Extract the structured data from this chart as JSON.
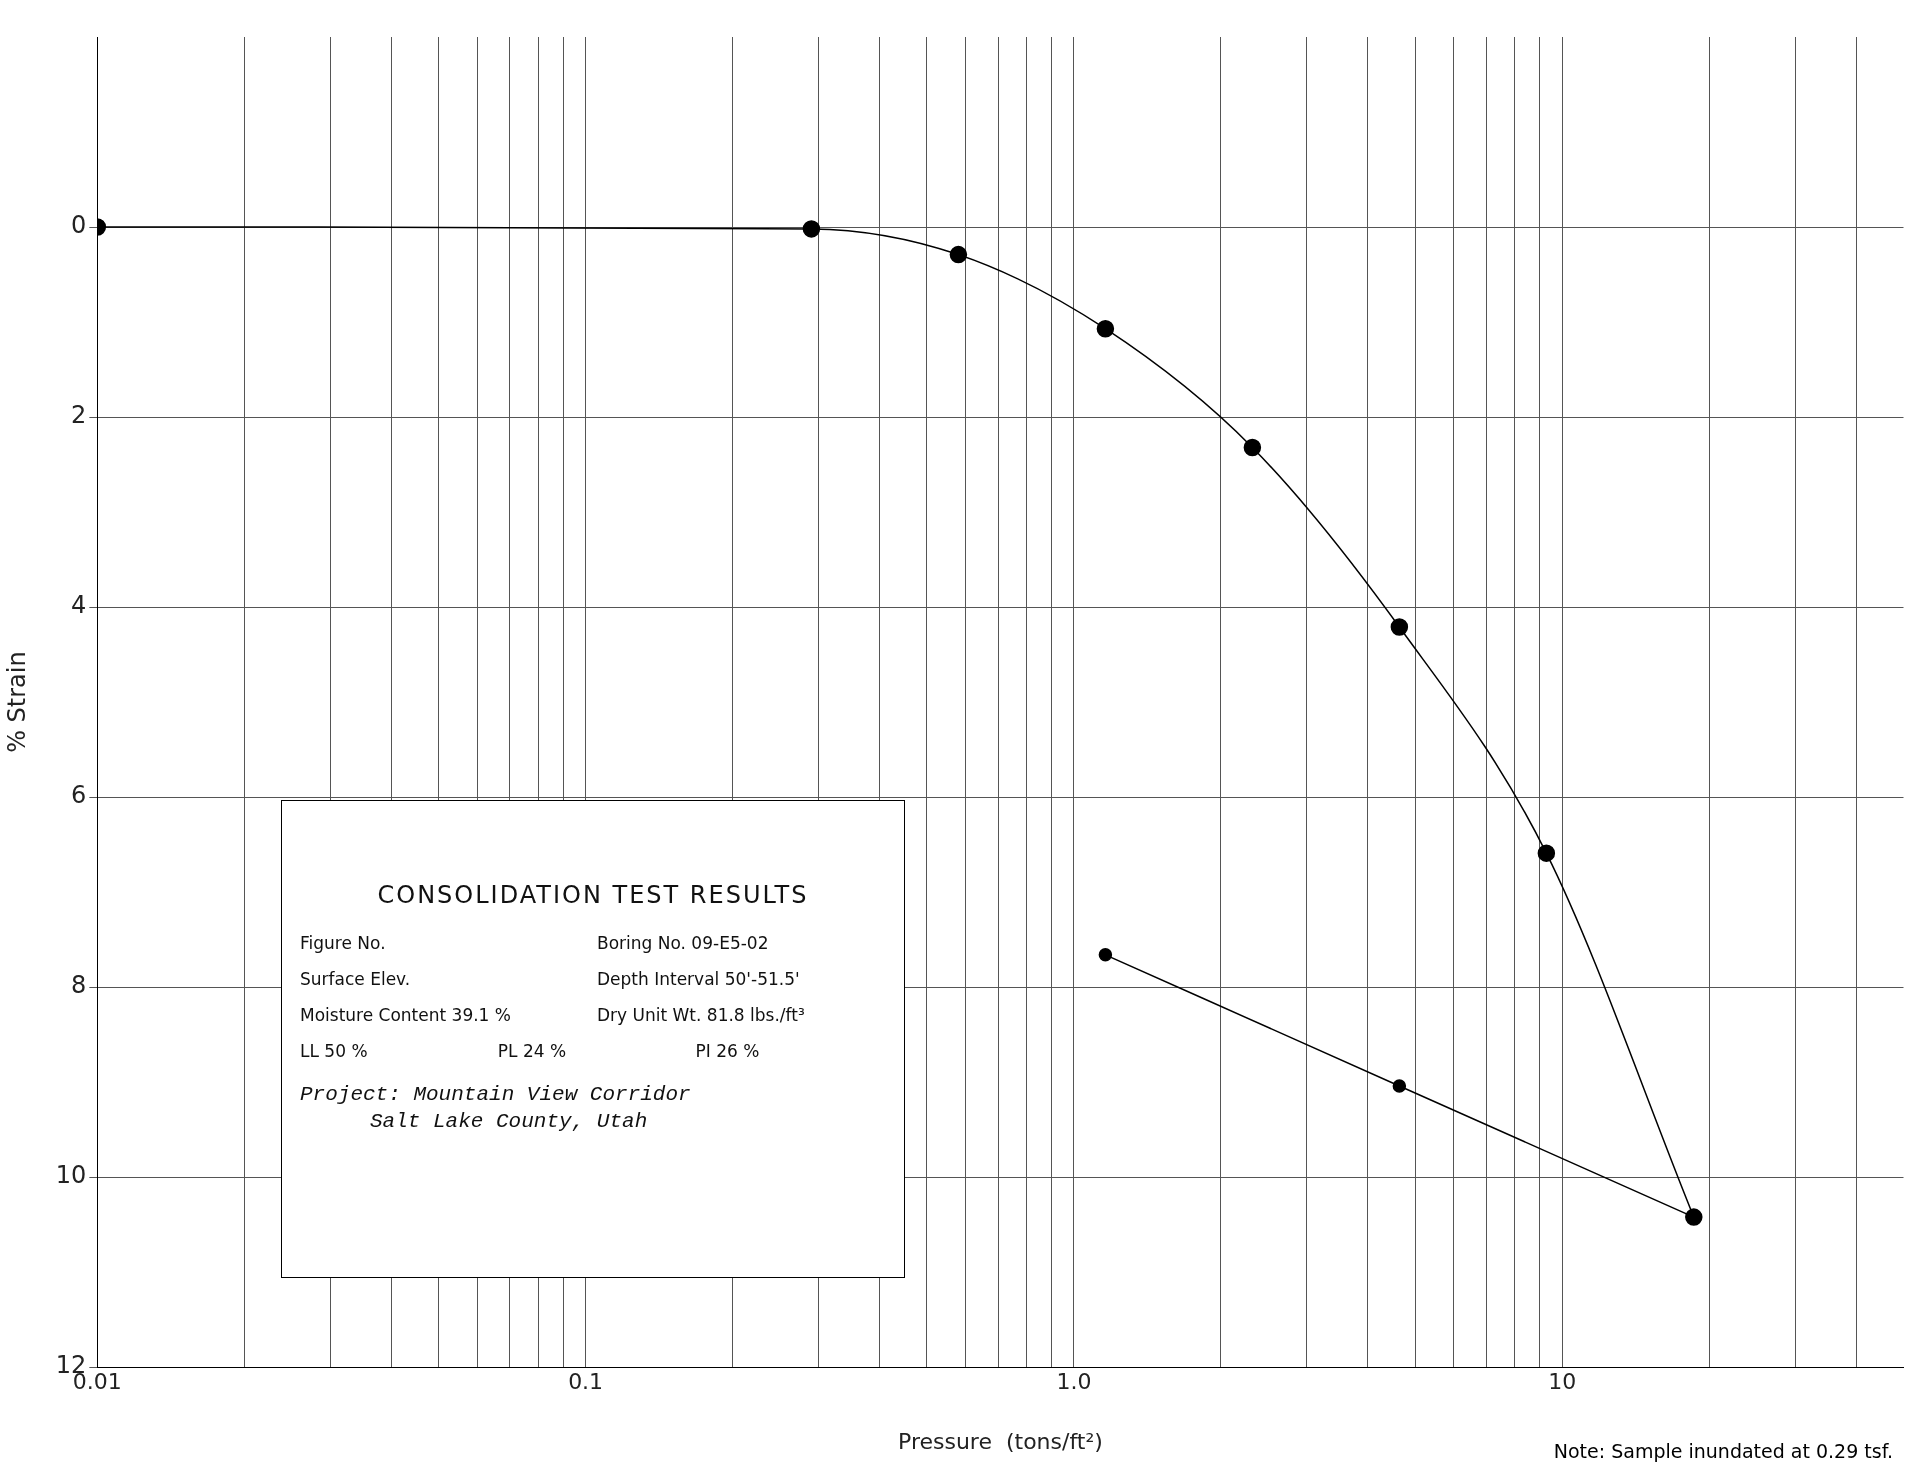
{
  "chart_data": {
    "type": "line",
    "xlabel": "Pressure  (tons/ft²)",
    "ylabel": "% Strain",
    "log": "x",
    "xlim": [
      0.01,
      50
    ],
    "ylim": [
      12,
      -2
    ],
    "xticks": [
      0.01,
      {
        "value": 0.02,
        "label": null
      },
      {
        "value": 0.03,
        "label": null
      },
      {
        "value": 0.04,
        "label": null
      },
      {
        "value": 0.05,
        "label": null
      },
      {
        "value": 0.06,
        "label": null
      },
      {
        "value": 0.07,
        "label": null
      },
      {
        "value": 0.08,
        "label": null
      },
      {
        "value": 0.09,
        "label": null
      },
      0.1,
      {
        "value": 0.2,
        "label": null
      },
      {
        "value": 0.3,
        "label": null
      },
      {
        "value": 0.4,
        "label": null
      },
      {
        "value": 0.5,
        "label": null
      },
      {
        "value": 0.6,
        "label": null
      },
      {
        "value": 0.7,
        "label": null
      },
      {
        "value": 0.8,
        "label": null
      },
      {
        "value": 0.9,
        "label": null
      },
      {
        "value": 1,
        "label": "1.0"
      },
      {
        "value": 2,
        "label": null
      },
      {
        "value": 3,
        "label": null
      },
      {
        "value": 4,
        "label": null
      },
      {
        "value": 5,
        "label": null
      },
      {
        "value": 6,
        "label": null
      },
      {
        "value": 7,
        "label": null
      },
      {
        "value": 8,
        "label": null
      },
      {
        "value": 9,
        "label": null
      },
      10,
      {
        "value": 20,
        "label": null
      },
      {
        "value": 30,
        "label": null
      },
      {
        "value": 40,
        "label": null
      }
    ],
    "yticks": [
      0,
      2,
      4,
      6,
      8,
      10,
      12
    ],
    "grid": true,
    "legend": false,
    "marker": "circle",
    "line_style": "solid",
    "series": [
      {
        "color": "#000000",
        "x": [
          0.01,
          0.29,
          0.58,
          1.16,
          2.32,
          4.64,
          9.28,
          18.6
        ],
        "values": [
          0,
          0.02,
          0.29,
          1.07,
          2.32,
          4.21,
          6.59,
          10.42
        ]
      },
      {
        "color": "#000000",
        "x": [
          1.16,
          4.64,
          18.6
        ],
        "values": [
          7.66,
          9.04,
          10.42
        ]
      }
    ],
    "annotations": [
      "CONSOLIDATION TEST RESULTS",
      "Figure No.",
      "Boring No. 09-E5-02",
      "Surface Elev.",
      "Depth Interval 50'-51.5'",
      "Moisture Content 39.1 %",
      "Dry Unit Wt. 81.8 lbs./ft³",
      "LL 50 %",
      "PL 24 %",
      "PI 26 %",
      "Project: Mountain View Corridor",
      "Salt Lake County, Utah",
      "Note: Sample inundated at 0.29 tsf."
    ]
  }
}
